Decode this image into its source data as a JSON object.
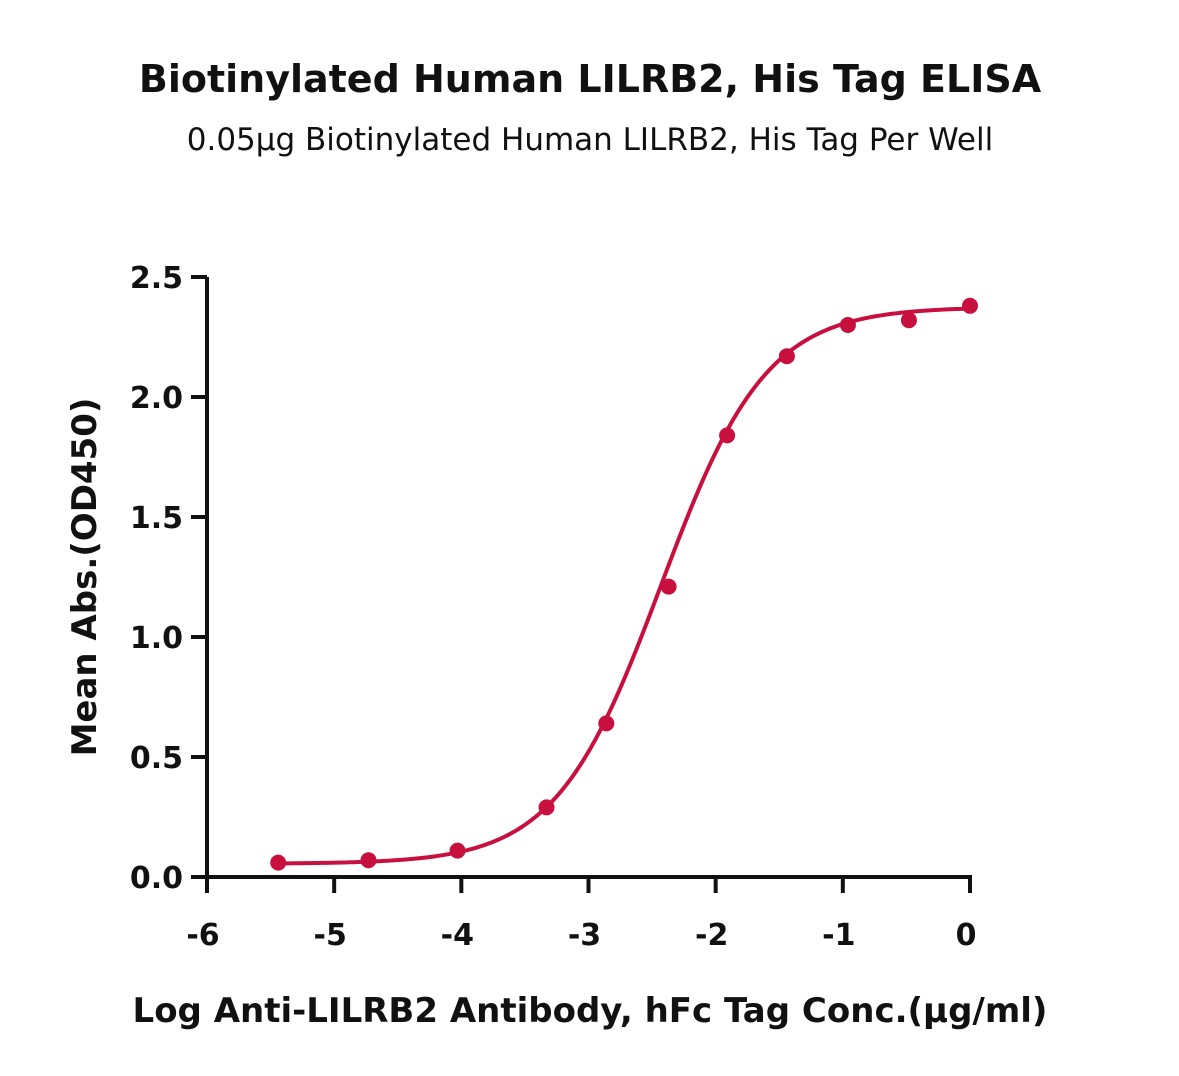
{
  "chart_data": {
    "type": "scatter",
    "title": "Biotinylated Human LILRB2, His Tag ELISA",
    "subtitle": "0.05μg Biotinylated Human LILRB2, His Tag Per Well",
    "xlabel": "Log Anti-LILRB2 Antibody, hFc Tag Conc.(μg/ml)",
    "ylabel": "Mean Abs.(OD450)",
    "xlim": [
      -6,
      0
    ],
    "ylim": [
      0,
      2.5
    ],
    "x_ticks": [
      "-6",
      "-5",
      "-4",
      "-3",
      "-2",
      "-1",
      "0"
    ],
    "y_ticks": [
      "0.0",
      "0.5",
      "1.0",
      "1.5",
      "2.0",
      "2.5"
    ],
    "grid": false,
    "color": "#c8103e",
    "series": [
      {
        "x": [
          -5.44,
          -4.73,
          -4.03,
          -3.33,
          -2.86,
          -2.37,
          -1.91,
          -1.44,
          -0.96,
          -0.48,
          0.0
        ],
        "y": [
          0.06,
          0.07,
          0.11,
          0.29,
          0.64,
          1.21,
          1.84,
          2.17,
          2.3,
          2.32,
          2.38
        ],
        "fit": "four-parameter-logistic"
      }
    ]
  }
}
